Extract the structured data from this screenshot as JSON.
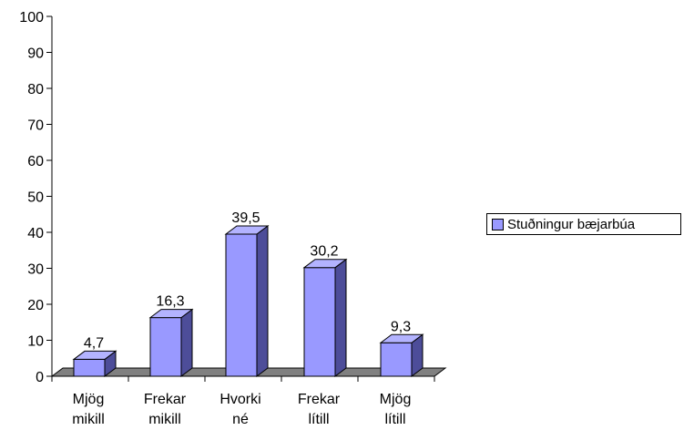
{
  "chart_data": {
    "type": "bar",
    "categories": [
      [
        "Mjög",
        "mikill"
      ],
      [
        "Frekar",
        "mikill"
      ],
      [
        "Hvorki",
        "né"
      ],
      [
        "Frekar",
        "lítill"
      ],
      [
        "Mjög",
        "lítill"
      ]
    ],
    "series": [
      {
        "name": "Stuðningur bæjarbúa",
        "values": [
          4.7,
          16.3,
          39.5,
          30.2,
          9.3
        ]
      }
    ],
    "data_labels": [
      "4,7",
      "16,3",
      "39,5",
      "30,2",
      "9,3"
    ],
    "y_ticks": [
      0,
      10,
      20,
      30,
      40,
      50,
      60,
      70,
      80,
      90,
      100
    ],
    "ylim": [
      0,
      100
    ],
    "grid": false,
    "legend_position": "right",
    "colors": {
      "bar_front": "#9999ff",
      "bar_side": "#4d4d99",
      "bar_top": "#b3b3ff",
      "floor": "#808080"
    }
  }
}
